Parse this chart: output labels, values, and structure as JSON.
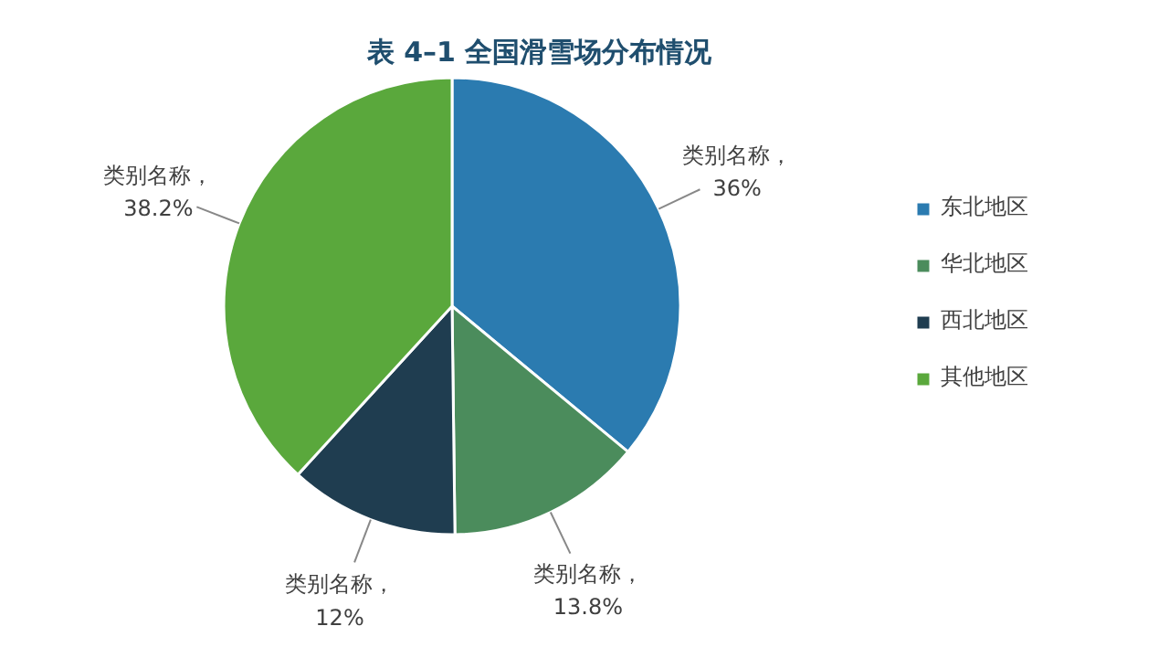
{
  "chart_data": {
    "type": "pie",
    "title": "表 4–1   全国滑雪场分布情况",
    "categories": [
      "东北地区",
      "华北地区",
      "西北地区",
      "其他地区"
    ],
    "values": [
      36,
      13.8,
      12,
      38.2
    ],
    "colors": [
      "#2b7bb0",
      "#4b8c5c",
      "#1f3d50",
      "#5aa83c"
    ],
    "value_labels": [
      "类别名称，\n36%",
      "类别名称，\n13.8%",
      "类别名称，\n12%",
      "类别名称，\n38.2%"
    ],
    "legend": "right"
  }
}
